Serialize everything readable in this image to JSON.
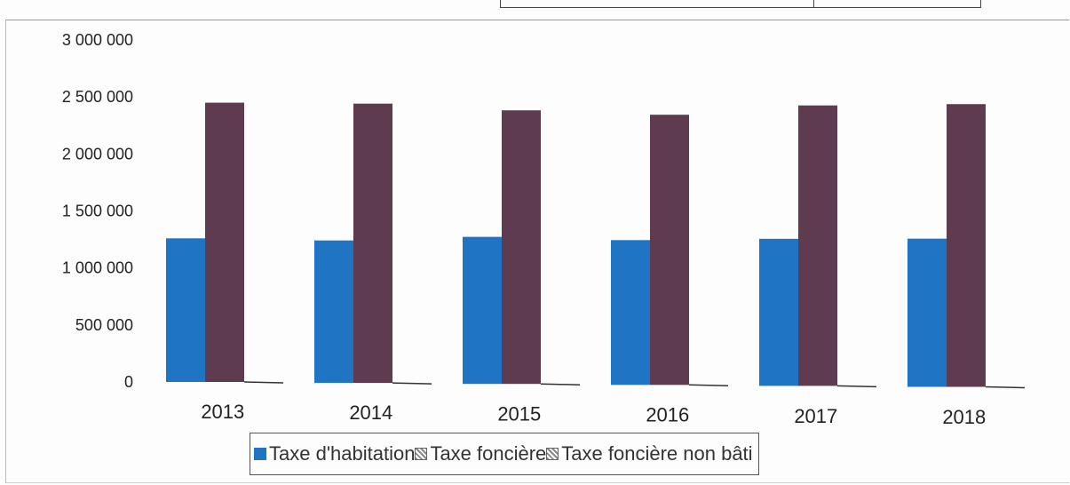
{
  "chart_data": {
    "type": "bar",
    "title": "",
    "xlabel": "",
    "ylabel": "",
    "categories": [
      "2013",
      "2014",
      "2015",
      "2016",
      "2017",
      "2018"
    ],
    "series": [
      {
        "name": "Taxe d'habitation",
        "color": "#1f74c4",
        "values": [
          1260000,
          1250000,
          1290000,
          1270000,
          1290000,
          1300000
        ]
      },
      {
        "name": "Taxe foncière",
        "color": "#5e3b4e",
        "values": [
          2450000,
          2450000,
          2400000,
          2370000,
          2460000,
          2480000
        ]
      },
      {
        "name": "Taxe foncière non bâti",
        "color": "#9e9e9e",
        "values": [
          0,
          0,
          0,
          0,
          0,
          0
        ]
      }
    ],
    "ylim": [
      0,
      3000000
    ],
    "yticks": [
      0,
      500000,
      1000000,
      1500000,
      2000000,
      2500000,
      3000000
    ],
    "ytick_labels": [
      "0",
      "500 000",
      "1 000 000",
      "1 500 000",
      "2 000 000",
      "2 500 000",
      "3 000 000"
    ],
    "grid": false,
    "legend_position": "bottom"
  }
}
